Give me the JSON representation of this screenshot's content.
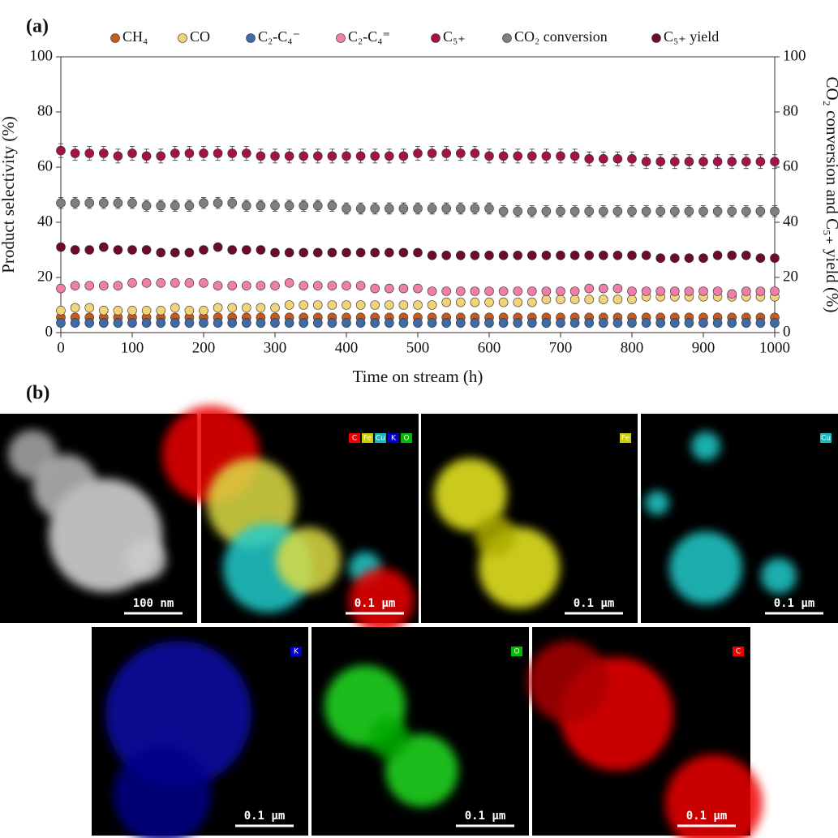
{
  "chart_data": {
    "type": "scatter",
    "panel_label": "(a)",
    "x_label": "Time on stream (h)",
    "y_label": "Product selectivity (%)",
    "y2_label": "CO₂ conversion and C₅₊ yield (%)",
    "xlim": [
      0,
      1000
    ],
    "xticks": [
      0,
      100,
      200,
      300,
      400,
      500,
      600,
      700,
      800,
      900,
      1000
    ],
    "ylim": [
      0,
      100
    ],
    "yticks": [
      0,
      20,
      40,
      60,
      80,
      100
    ],
    "y2lim": [
      0,
      100
    ],
    "y2ticks": [
      0,
      20,
      40,
      60,
      80,
      100
    ],
    "x": [
      0,
      20,
      40,
      60,
      80,
      100,
      120,
      140,
      160,
      180,
      200,
      220,
      240,
      260,
      280,
      300,
      320,
      340,
      360,
      380,
      400,
      420,
      440,
      460,
      480,
      500,
      520,
      540,
      560,
      580,
      600,
      620,
      640,
      660,
      680,
      700,
      720,
      740,
      760,
      780,
      800,
      820,
      840,
      860,
      880,
      900,
      920,
      940,
      960,
      980,
      1000
    ],
    "series": [
      {
        "name": "CH₄",
        "color": "#c65a1e",
        "values": [
          5.5,
          5.5,
          5.5,
          5.5,
          5.5,
          5.5,
          5.5,
          5.5,
          5.5,
          5.5,
          5.5,
          5.5,
          5.5,
          5.5,
          5.5,
          5.5,
          5.5,
          5.5,
          5.5,
          5.5,
          5.5,
          5.5,
          5.5,
          5.5,
          5.5,
          5.5,
          5.5,
          5.5,
          5.5,
          5.5,
          5.5,
          5.5,
          5.5,
          5.5,
          5.5,
          5.5,
          5.5,
          5.5,
          5.5,
          5.5,
          5.5,
          5.5,
          5.5,
          5.5,
          5.5,
          5.5,
          5.5,
          5.5,
          5.5,
          5.5,
          5.5
        ]
      },
      {
        "name": "CO",
        "color": "#f3d37a",
        "values": [
          8,
          9,
          9,
          8,
          8,
          8,
          8,
          8,
          9,
          8,
          8,
          9,
          9,
          9,
          9,
          9,
          10,
          10,
          10,
          10,
          10,
          10,
          10,
          10,
          10,
          10,
          10,
          11,
          11,
          11,
          11,
          11,
          11,
          11,
          12,
          12,
          12,
          12,
          12,
          12,
          12,
          13,
          13,
          13,
          13,
          13,
          13,
          13,
          13,
          13,
          13
        ]
      },
      {
        "name": "C₂-C₄⁻",
        "color": "#3e6aa8",
        "values": [
          3.5,
          3.5,
          3.5,
          3.5,
          3.5,
          3.5,
          3.5,
          3.5,
          3.5,
          3.5,
          3.5,
          3.5,
          3.5,
          3.5,
          3.5,
          3.5,
          3.5,
          3.5,
          3.5,
          3.5,
          3.5,
          3.5,
          3.5,
          3.5,
          3.5,
          3.5,
          3.5,
          3.5,
          3.5,
          3.5,
          3.5,
          3.5,
          3.5,
          3.5,
          3.5,
          3.5,
          3.5,
          3.5,
          3.5,
          3.5,
          3.5,
          3.5,
          3.5,
          3.5,
          3.5,
          3.5,
          3.5,
          3.5,
          3.5,
          3.5,
          3.5
        ]
      },
      {
        "name": "C₂-C₄⁼",
        "color": "#ef7fa8",
        "values": [
          16,
          17,
          17,
          17,
          17,
          18,
          18,
          18,
          18,
          18,
          18,
          17,
          17,
          17,
          17,
          17,
          18,
          17,
          17,
          17,
          17,
          17,
          16,
          16,
          16,
          16,
          15,
          15,
          15,
          15,
          15,
          15,
          15,
          15,
          15,
          15,
          15,
          16,
          16,
          16,
          15,
          15,
          15,
          15,
          15,
          15,
          15,
          14,
          15,
          15,
          15
        ]
      },
      {
        "name": "C₅₊",
        "color": "#a3124a",
        "error": 2.5,
        "values": [
          66,
          65,
          65,
          65,
          64,
          65,
          64,
          64,
          65,
          65,
          65,
          65,
          65,
          65,
          64,
          64,
          64,
          64,
          64,
          64,
          64,
          64,
          64,
          64,
          64,
          65,
          65,
          65,
          65,
          65,
          64,
          64,
          64,
          64,
          64,
          64,
          64,
          63,
          63,
          63,
          63,
          62,
          62,
          62,
          62,
          62,
          62,
          62,
          62,
          62,
          62
        ]
      },
      {
        "name": "CO₂ conversion",
        "color": "#7f7f7f",
        "axis": "y2",
        "error": 2,
        "values": [
          47,
          47,
          47,
          47,
          47,
          47,
          46,
          46,
          46,
          46,
          47,
          47,
          47,
          46,
          46,
          46,
          46,
          46,
          46,
          46,
          45,
          45,
          45,
          45,
          45,
          45,
          45,
          45,
          45,
          45,
          45,
          44,
          44,
          44,
          44,
          44,
          44,
          44,
          44,
          44,
          44,
          44,
          44,
          44,
          44,
          44,
          44,
          44,
          44,
          44,
          44
        ]
      },
      {
        "name": "C₅₊ yield",
        "color": "#6d0b2a",
        "axis": "y2",
        "values": [
          31,
          30,
          30,
          31,
          30,
          30,
          30,
          29,
          29,
          29,
          30,
          31,
          30,
          30,
          30,
          29,
          29,
          29,
          29,
          29,
          29,
          29,
          29,
          29,
          29,
          29,
          28,
          28,
          28,
          28,
          28,
          28,
          28,
          28,
          28,
          28,
          28,
          28,
          28,
          28,
          28,
          28,
          27,
          27,
          27,
          27,
          28,
          28,
          28,
          27,
          27
        ]
      }
    ]
  },
  "panel_b": {
    "label": "(b)",
    "images": [
      {
        "scale_bar": "100 nm",
        "tags": []
      },
      {
        "scale_bar": "0.1 µm",
        "tags": [
          "C",
          "Fe",
          "Cu",
          "K",
          "O"
        ]
      },
      {
        "scale_bar": "0.1 µm",
        "tags": [
          "Fe"
        ]
      },
      {
        "scale_bar": "0.1 µm",
        "tags": [
          "Cu"
        ]
      },
      {
        "scale_bar": "0.1 µm",
        "tags": [
          "K"
        ]
      },
      {
        "scale_bar": "0.1 µm",
        "tags": [
          "O"
        ]
      },
      {
        "scale_bar": "0.1 µm",
        "tags": [
          "C"
        ]
      }
    ]
  }
}
